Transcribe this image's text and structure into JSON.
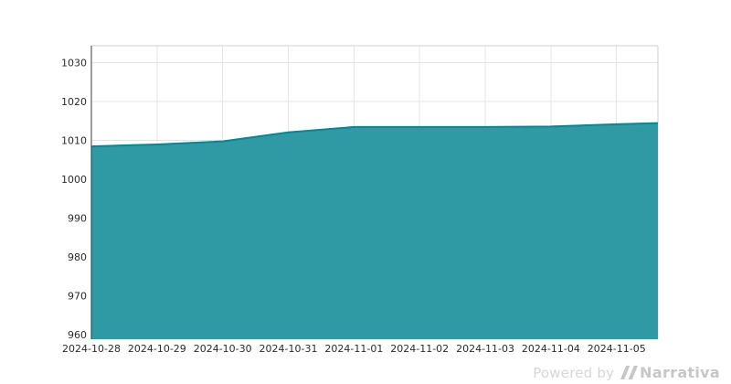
{
  "chart_data": {
    "type": "area",
    "title": "",
    "xlabel": "",
    "ylabel": "",
    "x": [
      "2024-10-28",
      "2024-10-29",
      "2024-10-30",
      "2024-10-31",
      "2024-11-01",
      "2024-11-02",
      "2024-11-03",
      "2024-11-04",
      "2024-11-05"
    ],
    "values": [
      1008.4,
      1008.9,
      1009.7,
      1012.0,
      1013.4,
      1013.4,
      1013.4,
      1013.5,
      1014.1
    ],
    "right_edge": {
      "days_after_last_tick": 0.63,
      "value": 1014.4
    },
    "xlim_days": [
      0,
      8.63
    ],
    "ylim": [
      958.8,
      1034.3
    ],
    "yticks": [
      960,
      970,
      980,
      990,
      1000,
      1010,
      1020,
      1030
    ],
    "grid": true,
    "legend_position": "none",
    "colors": {
      "fill": "#2f99a4",
      "line": "#17808d",
      "grid": "#e4e4e4",
      "spine_left": "#3a3a3a",
      "spine_light": "#cfcfcf",
      "tick_text": "#2b2b2b"
    },
    "tick_font_px": 11
  },
  "watermark": {
    "powered_by": "Powered by",
    "brand": "Narrativa",
    "color_powered_by": "#d6d6d6",
    "color_brand": "#c7c7c7"
  }
}
